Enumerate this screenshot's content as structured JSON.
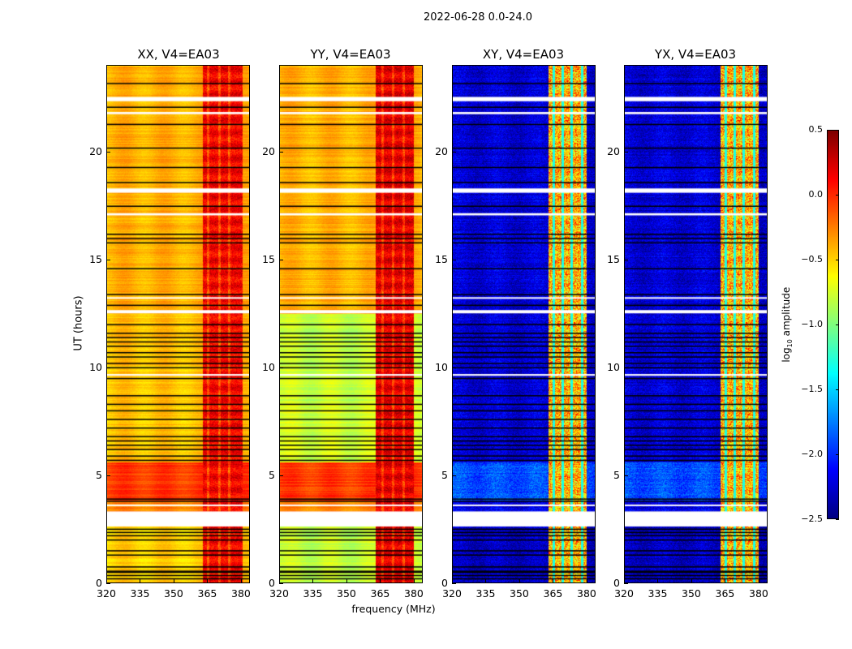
{
  "chart_data": {
    "type": "heatmap",
    "title": "2022-06-28 0.0-24.0",
    "xlabel": "frequency (MHz)",
    "ylabel": "UT (hours)",
    "xlim": [
      320,
      384
    ],
    "ylim": [
      0,
      24
    ],
    "xticks": [
      "320",
      "335",
      "350",
      "365",
      "380"
    ],
    "yticks": [
      "0",
      "5",
      "10",
      "15",
      "20"
    ],
    "colorbar": {
      "label": "log10 amplitude",
      "label_main": "log",
      "label_sub": "10",
      "label_rest": " amplitude",
      "range": [
        -2.5,
        0.5
      ],
      "ticks": [
        "0.5",
        "0.0",
        "−0.5",
        "−1.0",
        "−1.5",
        "−2.0",
        "−2.5"
      ],
      "colormap": "jet"
    },
    "panels": [
      {
        "title": "XX, V4=EA03",
        "baseline": -0.45,
        "segments": [
          [
            0,
            2.6,
            -0.5
          ],
          [
            3.3,
            3.8,
            -0.25
          ],
          [
            3.8,
            5.6,
            -0.05
          ],
          [
            5.6,
            12.5,
            -0.45
          ],
          [
            12.5,
            24,
            -0.4
          ]
        ],
        "band": [
          363,
          381
        ],
        "band_value": 0.15,
        "band_gaps": [
          365.5,
          370.5,
          375
        ]
      },
      {
        "title": "YY, V4=EA03",
        "baseline": -0.5,
        "segments": [
          [
            0,
            2.6,
            -0.8
          ],
          [
            3.3,
            3.8,
            -0.25
          ],
          [
            3.8,
            5.6,
            -0.05
          ],
          [
            5.6,
            8.4,
            -0.75
          ],
          [
            8.4,
            12.5,
            -0.8
          ],
          [
            12.5,
            24,
            -0.4
          ]
        ],
        "band": [
          363,
          380
        ],
        "band_value": 0.2,
        "band_gaps": [
          366,
          371,
          375.5
        ]
      },
      {
        "title": "XY, V4=EA03",
        "baseline": -2.25,
        "segments": [
          [
            0,
            2.6,
            -2.3
          ],
          [
            3.3,
            3.8,
            -2.2
          ],
          [
            3.8,
            5.6,
            -1.9
          ],
          [
            5.6,
            24,
            -2.25
          ]
        ],
        "band": [
          363,
          380
        ],
        "band_value": -0.4,
        "band_gaps": [
          365.5,
          369.5,
          373.5,
          378
        ]
      },
      {
        "title": "YX, V4=EA03",
        "baseline": -2.25,
        "segments": [
          [
            0,
            2.6,
            -2.3
          ],
          [
            3.3,
            3.8,
            -2.2
          ],
          [
            3.8,
            5.6,
            -1.9
          ],
          [
            5.6,
            24,
            -2.25
          ]
        ],
        "band": [
          363,
          380
        ],
        "band_value": -0.4,
        "band_gaps": [
          365.5,
          369.5,
          373.5,
          378
        ]
      }
    ],
    "flagged_missing_hours": [
      [
        2.6,
        3.3
      ],
      [
        3.55,
        3.62
      ],
      [
        18.1,
        18.3
      ],
      [
        12.5,
        12.65
      ],
      [
        22.35,
        22.55
      ],
      [
        17.05,
        17.15
      ],
      [
        21.75,
        21.85
      ],
      [
        9.6,
        9.68
      ],
      [
        13.2,
        13.25
      ]
    ],
    "flagged_line_hours": [
      0.2,
      0.35,
      0.5,
      0.55,
      0.75,
      1.3,
      1.5,
      2.0,
      2.2,
      2.35,
      2.5,
      3.2,
      3.8,
      3.9,
      5.7,
      5.9,
      6.2,
      6.4,
      6.6,
      6.8,
      7.2,
      7.6,
      8.0,
      8.3,
      8.7,
      9.5,
      10.0,
      10.2,
      10.5,
      10.7,
      11.0,
      11.2,
      11.4,
      11.6,
      12.0,
      12.9,
      13.4,
      14.6,
      15.8,
      16.0,
      16.2,
      17.5,
      18.6,
      19.3,
      20.2,
      21.3,
      22.1,
      23.2
    ]
  }
}
